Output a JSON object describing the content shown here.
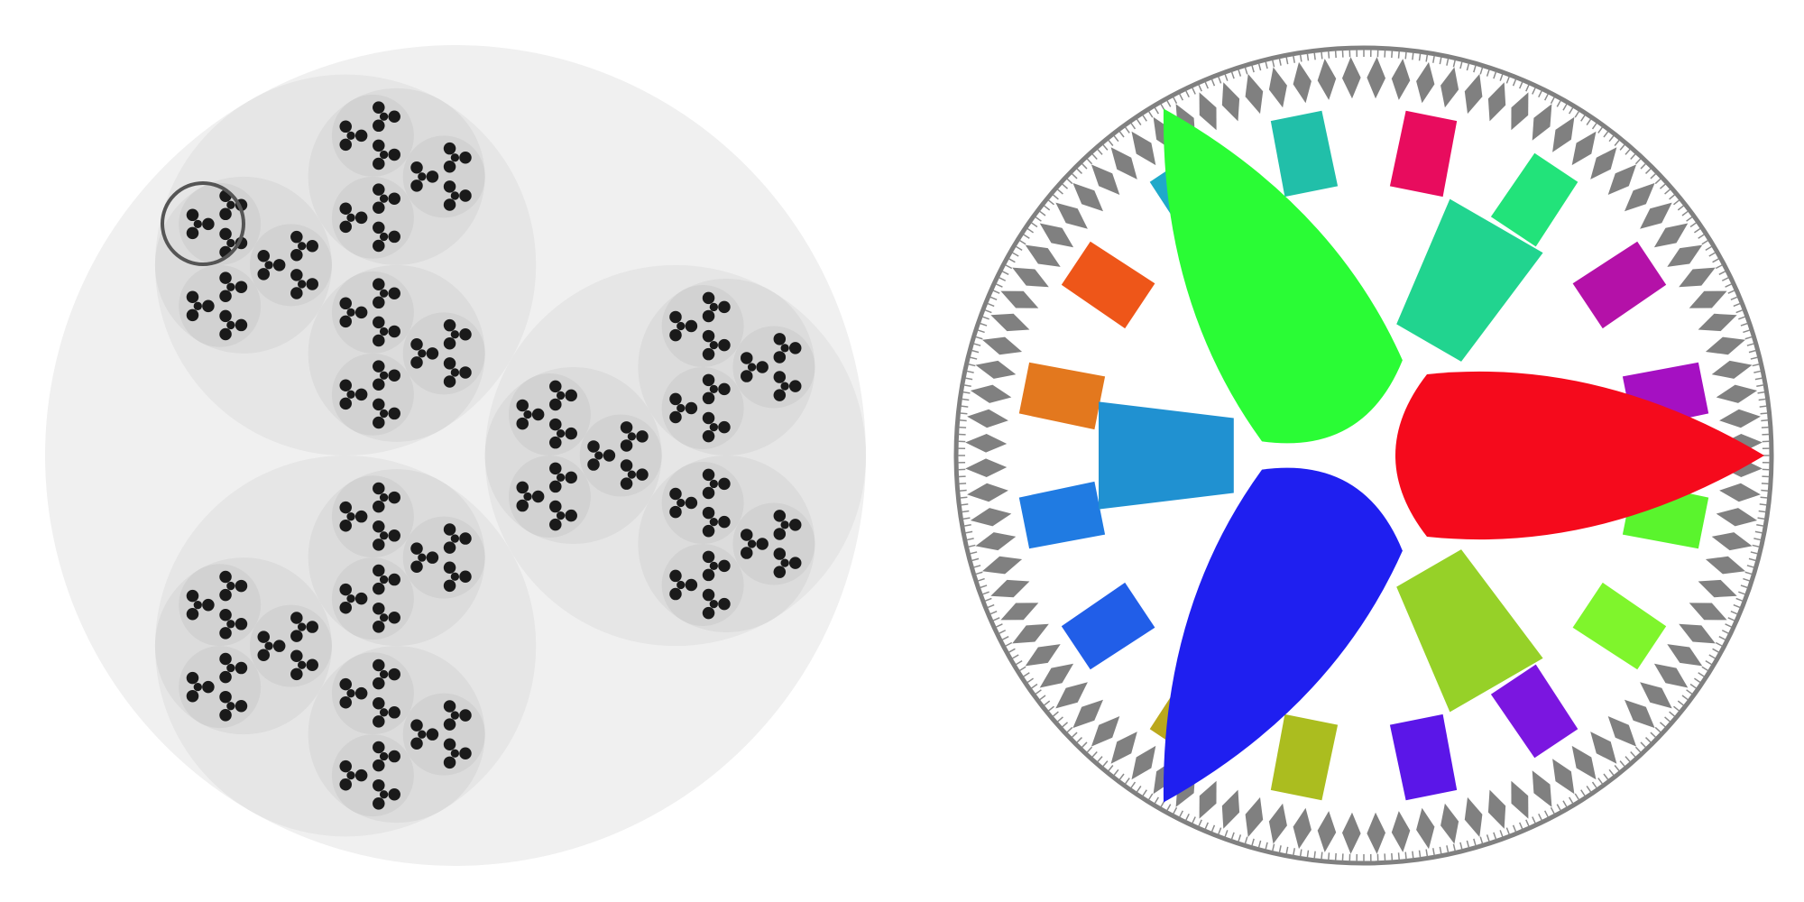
{
  "figure": {
    "panels": [
      {
        "id": "left",
        "kind": "nested-circle-fractal",
        "branching": 3,
        "depth_levels": 4,
        "fill_colors": [
          "#f0f0f0",
          "#e6e6e6",
          "#dcdcdc",
          "#d2d2d2"
        ],
        "leaf_color": "#1a1a1a",
        "highlight_color": "#555555"
      },
      {
        "id": "right",
        "kind": "hyperbolic-disk-tiling",
        "central_wedges": [
          {
            "name": "red",
            "color": "#f50a1c"
          },
          {
            "name": "green",
            "color": "#2afc35"
          },
          {
            "name": "blue",
            "color": "#1f1ff0"
          }
        ],
        "ring1_colors": [
          "#21d48f",
          "#9217d6",
          "#96d128",
          "#cf921f",
          "#2091d1",
          "#cf1189"
        ],
        "ring2_colors": [
          "#e80c5e",
          "#22e37a",
          "#b411a8",
          "#a510c2",
          "#5af42d",
          "#7ff52c",
          "#7b16e0",
          "#5b16e8",
          "#abbd1f",
          "#bba81c",
          "#215ee8",
          "#207be2",
          "#e3781e",
          "#ee5619",
          "#1fa9c9",
          "#21bfa9"
        ],
        "rim_color": "#808080"
      }
    ]
  }
}
